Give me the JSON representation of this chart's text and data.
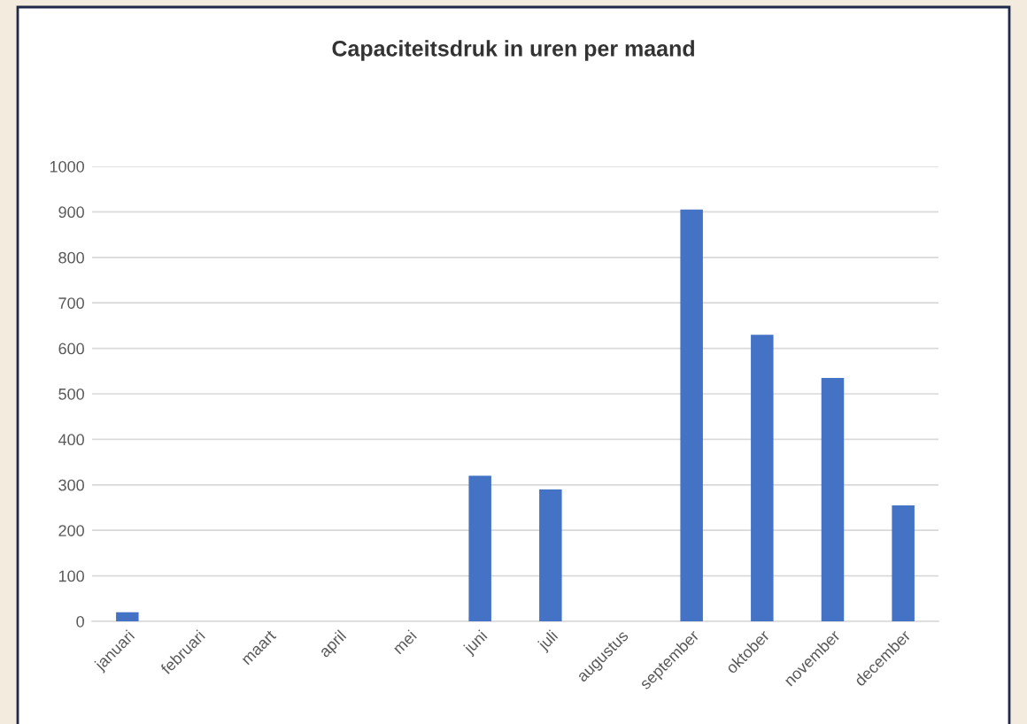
{
  "chart_data": {
    "type": "bar",
    "title": "Capaciteitsdruk in uren per maand",
    "categories": [
      "januari",
      "februari",
      "maart",
      "april",
      "mei",
      "juni",
      "juli",
      "augustus",
      "september",
      "oktober",
      "november",
      "december"
    ],
    "values": [
      20,
      0,
      0,
      0,
      0,
      320,
      290,
      0,
      905,
      630,
      535,
      255
    ],
    "color": "#4472c4",
    "ylim": [
      0,
      1000
    ],
    "yticks": [
      0,
      100,
      200,
      300,
      400,
      500,
      600,
      700,
      800,
      900,
      1000
    ],
    "grid": "y",
    "legend": false
  }
}
